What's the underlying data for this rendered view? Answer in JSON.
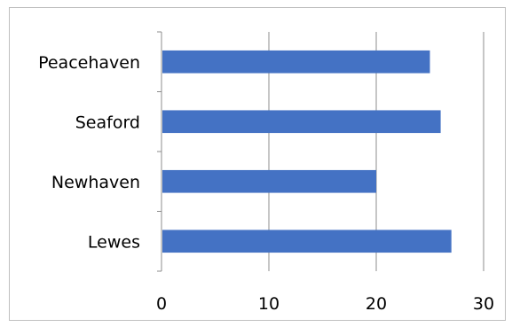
{
  "chart_data": {
    "type": "bar",
    "orientation": "horizontal",
    "categories": [
      "Peacehaven",
      "Seaford",
      "Newhaven",
      "Lewes"
    ],
    "values": [
      25,
      26,
      20,
      27
    ],
    "title": "",
    "xlabel": "",
    "ylabel": "",
    "xlim": [
      0,
      30
    ],
    "x_ticks": [
      "0",
      "10",
      "20",
      "30"
    ],
    "grid": "vertical major gridlines",
    "legend": "none",
    "bar_color": "#4472C4"
  }
}
